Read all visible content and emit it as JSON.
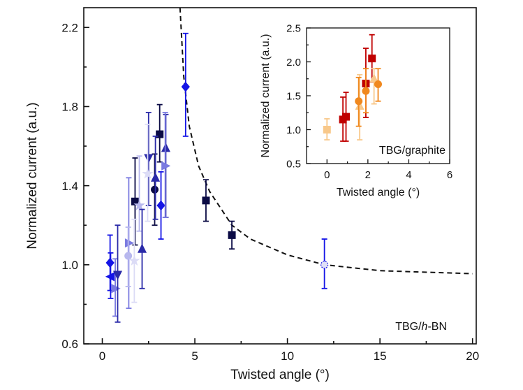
{
  "chart_data": [
    {
      "type": "scatter",
      "xlabel": "Twisted angle (°)",
      "ylabel": "Normalized current (a.u.)",
      "annotation": "TBG/h-BN",
      "xlim": [
        -1,
        20.2
      ],
      "ylim": [
        0.6,
        2.3
      ],
      "xticks": [
        0,
        5,
        10,
        15,
        20
      ],
      "yticks": [
        0.6,
        1.0,
        1.4,
        1.8,
        2.2
      ],
      "tick_labels_x": [
        "0",
        "5",
        "10",
        "15",
        "20"
      ],
      "tick_labels_y": [
        "0.6",
        "1.0",
        "1.4",
        "1.8",
        "2.2"
      ],
      "grid": false,
      "colors": {
        "navy": "#0b0b45",
        "blue": "#1414e6",
        "mid": "#2a2aa8",
        "light": "#7a7ae0",
        "pale": "#b8b8ee",
        "faint": "#dcdcf6"
      },
      "points": [
        {
          "x": 4.5,
          "y": 1.9,
          "err": [
            1.65,
            2.17
          ],
          "marker": "diamond",
          "color": "blue"
        },
        {
          "x": 5.6,
          "y": 1.325,
          "err": [
            1.22,
            1.43
          ],
          "marker": "square",
          "color": "navy"
        },
        {
          "x": 7.0,
          "y": 1.15,
          "err": [
            1.08,
            1.22
          ],
          "marker": "square",
          "color": "navy"
        },
        {
          "x": 12.0,
          "y": 1.0,
          "err": [
            0.88,
            1.13
          ],
          "marker": "circle-open",
          "color": "blue"
        },
        {
          "x": 1.77,
          "y": 1.32,
          "err": [
            1.1,
            1.54
          ],
          "marker": "square",
          "color": "navy"
        },
        {
          "x": 3.1,
          "y": 1.66,
          "err": [
            1.52,
            1.81
          ],
          "marker": "square",
          "color": "navy"
        },
        {
          "x": 2.83,
          "y": 1.38,
          "err": [
            1.2,
            1.56
          ],
          "marker": "circle",
          "color": "navy"
        },
        {
          "x": 2.87,
          "y": 1.44,
          "err": [
            1.23,
            1.65
          ],
          "marker": "triangle-up",
          "color": "mid"
        },
        {
          "x": 3.17,
          "y": 1.3,
          "err": [
            1.13,
            1.47
          ],
          "marker": "diamond",
          "color": "blue"
        },
        {
          "x": 3.43,
          "y": 1.59,
          "err": [
            1.24,
            1.76
          ],
          "marker": "triangle-up",
          "color": "mid"
        },
        {
          "x": 3.4,
          "y": 1.5,
          "err": [
            1.24,
            1.77
          ],
          "marker": "triangle-right",
          "color": "light"
        },
        {
          "x": 2.5,
          "y": 1.54,
          "err": [
            1.3,
            1.77
          ],
          "marker": "triangle-down",
          "color": "mid"
        },
        {
          "x": 2.45,
          "y": 1.46,
          "err": [
            1.22,
            1.71
          ],
          "marker": "star",
          "color": "faint"
        },
        {
          "x": 2.0,
          "y": 1.3,
          "err": [
            1.17,
            1.55
          ],
          "marker": "star",
          "color": "pale"
        },
        {
          "x": 2.15,
          "y": 1.08,
          "err": [
            0.88,
            1.28
          ],
          "marker": "triangle-up",
          "color": "mid"
        },
        {
          "x": 1.43,
          "y": 1.11,
          "err": [
            0.78,
            1.44
          ],
          "marker": "triangle-right",
          "color": "light"
        },
        {
          "x": 1.4,
          "y": 1.045,
          "err": [
            0.89,
            1.19
          ],
          "marker": "circle",
          "color": "pale"
        },
        {
          "x": 1.73,
          "y": 1.02,
          "err": [
            0.81,
            1.23
          ],
          "marker": "star",
          "color": "faint"
        },
        {
          "x": 0.42,
          "y": 1.01,
          "err": [
            0.87,
            1.15
          ],
          "marker": "diamond",
          "color": "blue"
        },
        {
          "x": 0.45,
          "y": 0.94,
          "err": [
            0.83,
            1.06
          ],
          "marker": "triangle-left",
          "color": "blue"
        },
        {
          "x": 0.7,
          "y": 0.88,
          "err": [
            0.74,
            1.03
          ],
          "marker": "triangle-right",
          "color": "light"
        },
        {
          "x": 0.83,
          "y": 0.95,
          "err": [
            0.71,
            1.2
          ],
          "marker": "triangle-down",
          "color": "mid"
        }
      ],
      "fit_curve": {
        "style": "dashed",
        "x": [
          4.2,
          4.4,
          4.7,
          5.2,
          5.8,
          7,
          8,
          10,
          12,
          15,
          20
        ],
        "y": [
          2.3,
          1.95,
          1.7,
          1.5,
          1.37,
          1.2,
          1.13,
          1.05,
          1.0,
          0.97,
          0.955
        ]
      }
    },
    {
      "type": "scatter",
      "inset": true,
      "xlabel": "Twisted angle (°)",
      "ylabel": "Normalized current (a.u.)",
      "annotation": "TBG/graphite",
      "xlim": [
        -1,
        6
      ],
      "ylim": [
        0.5,
        2.5
      ],
      "xticks": [
        0,
        2,
        4,
        6
      ],
      "yticks": [
        0.5,
        1.0,
        1.5,
        2.0,
        2.5
      ],
      "tick_labels_x": [
        "0",
        "2",
        "4",
        "6"
      ],
      "tick_labels_y": [
        "0.5",
        "1.0",
        "1.5",
        "2.0",
        "2.5"
      ],
      "grid": false,
      "colors": {
        "red": "#c00000",
        "orange": "#f0881e",
        "light": "#f8c88a"
      },
      "points": [
        {
          "x": 0,
          "y": 1.0,
          "err": [
            0.85,
            1.16
          ],
          "marker": "square",
          "color": "light"
        },
        {
          "x": 0.78,
          "y": 1.15,
          "err": [
            0.83,
            1.48
          ],
          "marker": "square",
          "color": "red"
        },
        {
          "x": 0.93,
          "y": 1.19,
          "err": [
            0.83,
            1.55
          ],
          "marker": "square",
          "color": "red"
        },
        {
          "x": 1.9,
          "y": 1.68,
          "err": [
            1.18,
            2.2
          ],
          "marker": "square",
          "color": "red"
        },
        {
          "x": 2.2,
          "y": 2.05,
          "err": [
            1.7,
            2.4
          ],
          "marker": "square",
          "color": "red"
        },
        {
          "x": 1.6,
          "y": 1.35,
          "err": [
            0.85,
            1.81
          ],
          "marker": "triangle-up",
          "color": "light"
        },
        {
          "x": 2.3,
          "y": 1.75,
          "err": [
            1.38,
            1.9
          ],
          "marker": "triangle-up",
          "color": "light"
        },
        {
          "x": 1.55,
          "y": 1.42,
          "err": [
            1.05,
            1.77
          ],
          "marker": "circle",
          "color": "orange"
        },
        {
          "x": 1.9,
          "y": 1.57,
          "err": [
            1.25,
            1.9
          ],
          "marker": "circle",
          "color": "orange"
        },
        {
          "x": 2.5,
          "y": 1.67,
          "err": [
            1.42,
            1.9
          ],
          "marker": "circle",
          "color": "orange"
        }
      ]
    }
  ]
}
